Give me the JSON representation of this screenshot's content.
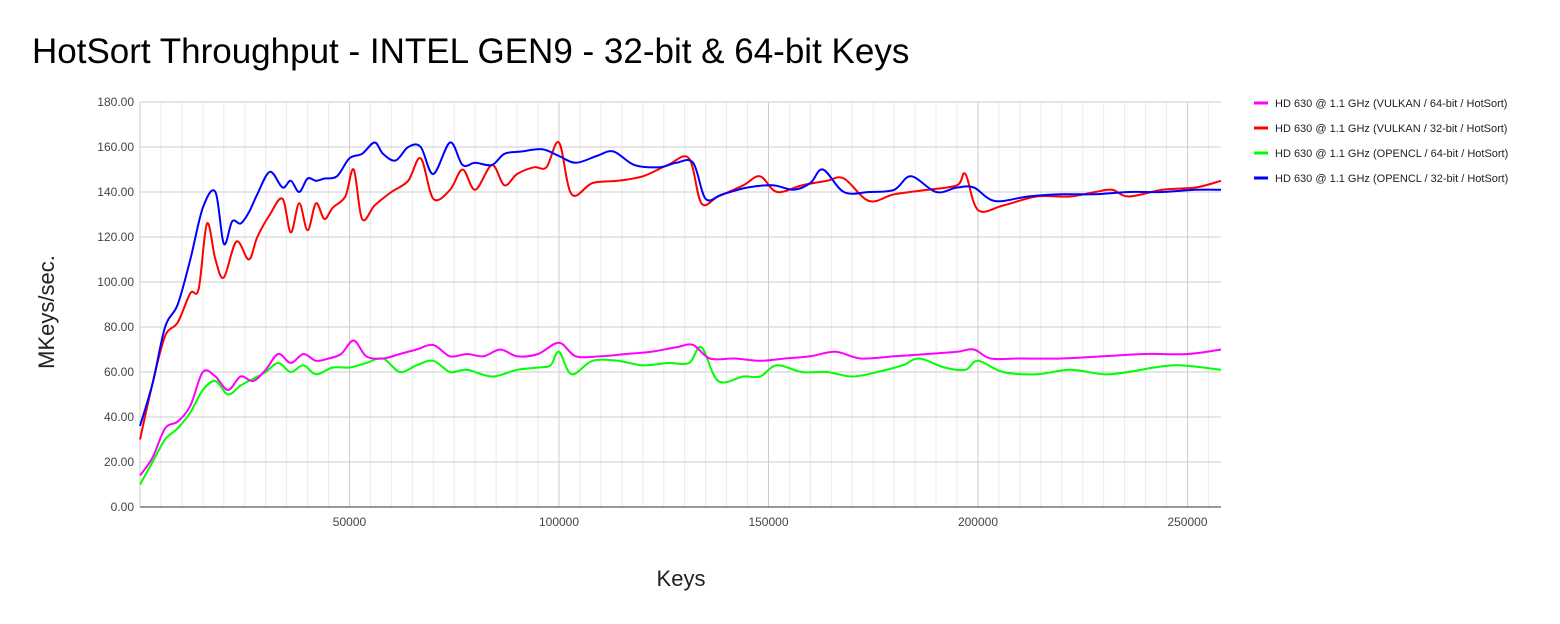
{
  "chart_data": {
    "type": "line",
    "title": "HotSort Throughput - INTEL GEN9 - 32-bit & 64-bit Keys",
    "xlabel": "Keys",
    "ylabel": "MKeys/sec.",
    "xlim": [
      0,
      258000
    ],
    "ylim": [
      0,
      180
    ],
    "grid": true,
    "legend_position": "right",
    "x_ticks": [
      50000,
      100000,
      150000,
      200000,
      250000
    ],
    "x_tick_labels": [
      "50000",
      "100000",
      "150000",
      "200000",
      "250000"
    ],
    "y_ticks": [
      0,
      20,
      40,
      60,
      80,
      100,
      120,
      140,
      160,
      180
    ],
    "y_tick_labels": [
      "0.00",
      "20.00",
      "40.00",
      "60.00",
      "80.00",
      "100.00",
      "120.00",
      "140.00",
      "160.00",
      "180.00"
    ],
    "series": [
      {
        "name": "HD 630 @ 1.1 GHz (VULKAN / 64-bit / HotSort)",
        "color": "#ff00ff",
        "x": [
          0,
          3000,
          6000,
          9000,
          12000,
          15000,
          18000,
          21000,
          24000,
          27000,
          30000,
          33000,
          36000,
          39000,
          42000,
          45000,
          48000,
          51000,
          54000,
          58000,
          62000,
          66000,
          70000,
          74000,
          78000,
          82000,
          86000,
          90000,
          95000,
          100000,
          104000,
          110000,
          116000,
          122000,
          128000,
          132000,
          136000,
          142000,
          148000,
          154000,
          160000,
          166000,
          172000,
          180000,
          188000,
          195000,
          199000,
          203000,
          210000,
          220000,
          230000,
          240000,
          250000,
          258000
        ],
        "values": [
          14,
          22,
          35,
          38,
          45,
          60,
          58,
          52,
          58,
          56,
          61,
          68,
          64,
          68,
          65,
          66,
          68,
          74,
          67,
          66,
          68,
          70,
          72,
          67,
          68,
          67,
          70,
          67,
          68,
          73,
          67,
          67,
          68,
          69,
          71,
          72,
          66,
          66,
          65,
          66,
          67,
          69,
          66,
          67,
          68,
          69,
          70,
          66,
          66,
          66,
          67,
          68,
          68,
          70
        ]
      },
      {
        "name": "HD 630 @ 1.1 GHz (VULKAN / 32-bit / HotSort)",
        "color": "#ff0000",
        "x": [
          0,
          3000,
          6000,
          9000,
          12000,
          14000,
          16000,
          18000,
          20000,
          23000,
          26000,
          28000,
          31000,
          34000,
          36000,
          38000,
          40000,
          42000,
          44000,
          46000,
          49000,
          51000,
          53000,
          56000,
          60000,
          64000,
          67000,
          70000,
          74000,
          77000,
          80000,
          84000,
          87000,
          90000,
          94000,
          97000,
          100000,
          103000,
          108000,
          114000,
          120000,
          126000,
          131000,
          134000,
          138000,
          144000,
          148000,
          152000,
          158000,
          164000,
          168000,
          174000,
          180000,
          188000,
          195000,
          197000,
          200000,
          206000,
          214000,
          222000,
          228000,
          232000,
          236000,
          244000,
          252000,
          258000
        ],
        "values": [
          30,
          55,
          76,
          82,
          95,
          97,
          126,
          110,
          102,
          118,
          110,
          120,
          130,
          137,
          122,
          135,
          123,
          135,
          128,
          133,
          138,
          150,
          128,
          134,
          140,
          145,
          155,
          137,
          141,
          150,
          141,
          152,
          143,
          148,
          151,
          151,
          162,
          139,
          144,
          145,
          147,
          152,
          155,
          135,
          138,
          143,
          147,
          140,
          143,
          145,
          146,
          136,
          139,
          141,
          143,
          148,
          132,
          134,
          138,
          138,
          140,
          141,
          138,
          141,
          142,
          145
        ]
      },
      {
        "name": "HD 630 @ 1.1 GHz (OPENCL / 64-bit / HotSort)",
        "color": "#00ff00",
        "x": [
          0,
          3000,
          6000,
          9000,
          12000,
          15000,
          18000,
          21000,
          24000,
          27000,
          30000,
          33000,
          36000,
          39000,
          42000,
          46000,
          50000,
          54000,
          58000,
          62000,
          66000,
          70000,
          74000,
          78000,
          84000,
          90000,
          95000,
          98000,
          100000,
          103000,
          108000,
          114000,
          120000,
          126000,
          131000,
          134000,
          138000,
          144000,
          148000,
          152000,
          158000,
          164000,
          170000,
          176000,
          182000,
          186000,
          192000,
          197000,
          200000,
          206000,
          214000,
          222000,
          230000,
          236000,
          242000,
          248000,
          258000
        ],
        "values": [
          10,
          20,
          30,
          35,
          42,
          52,
          56,
          50,
          54,
          57,
          60,
          64,
          60,
          63,
          59,
          62,
          62,
          64,
          66,
          60,
          63,
          65,
          60,
          61,
          58,
          61,
          62,
          63,
          69,
          59,
          65,
          65,
          63,
          64,
          64,
          71,
          56,
          58,
          58,
          63,
          60,
          60,
          58,
          60,
          63,
          66,
          62,
          61,
          65,
          60,
          59,
          61,
          59,
          60,
          62,
          63,
          61
        ]
      },
      {
        "name": "HD 630 @ 1.1 GHz (OPENCL / 32-bit / HotSort)",
        "color": "#0000ff",
        "x": [
          0,
          3000,
          6000,
          9000,
          12000,
          15000,
          18000,
          20000,
          22000,
          24000,
          26000,
          28000,
          31000,
          34000,
          36000,
          38000,
          40000,
          42000,
          44000,
          47000,
          50000,
          53000,
          56000,
          58000,
          61000,
          64000,
          67000,
          70000,
          74000,
          77000,
          80000,
          84000,
          87000,
          91000,
          96000,
          100000,
          104000,
          109000,
          113000,
          118000,
          124000,
          128000,
          132000,
          135000,
          139000,
          145000,
          151000,
          156000,
          160000,
          163000,
          168000,
          174000,
          180000,
          184000,
          190000,
          195000,
          199000,
          204000,
          212000,
          220000,
          228000,
          236000,
          244000,
          252000,
          258000
        ],
        "values": [
          36,
          55,
          80,
          90,
          110,
          133,
          140,
          117,
          127,
          126,
          131,
          139,
          149,
          142,
          145,
          140,
          146,
          145,
          146,
          147,
          155,
          157,
          162,
          157,
          154,
          160,
          160,
          148,
          162,
          152,
          153,
          152,
          157,
          158,
          159,
          156,
          153,
          156,
          158,
          152,
          151,
          153,
          153,
          137,
          139,
          142,
          143,
          141,
          144,
          150,
          140,
          140,
          141,
          147,
          140,
          142,
          142,
          136,
          138,
          139,
          139,
          140,
          140,
          141,
          141
        ]
      }
    ]
  }
}
